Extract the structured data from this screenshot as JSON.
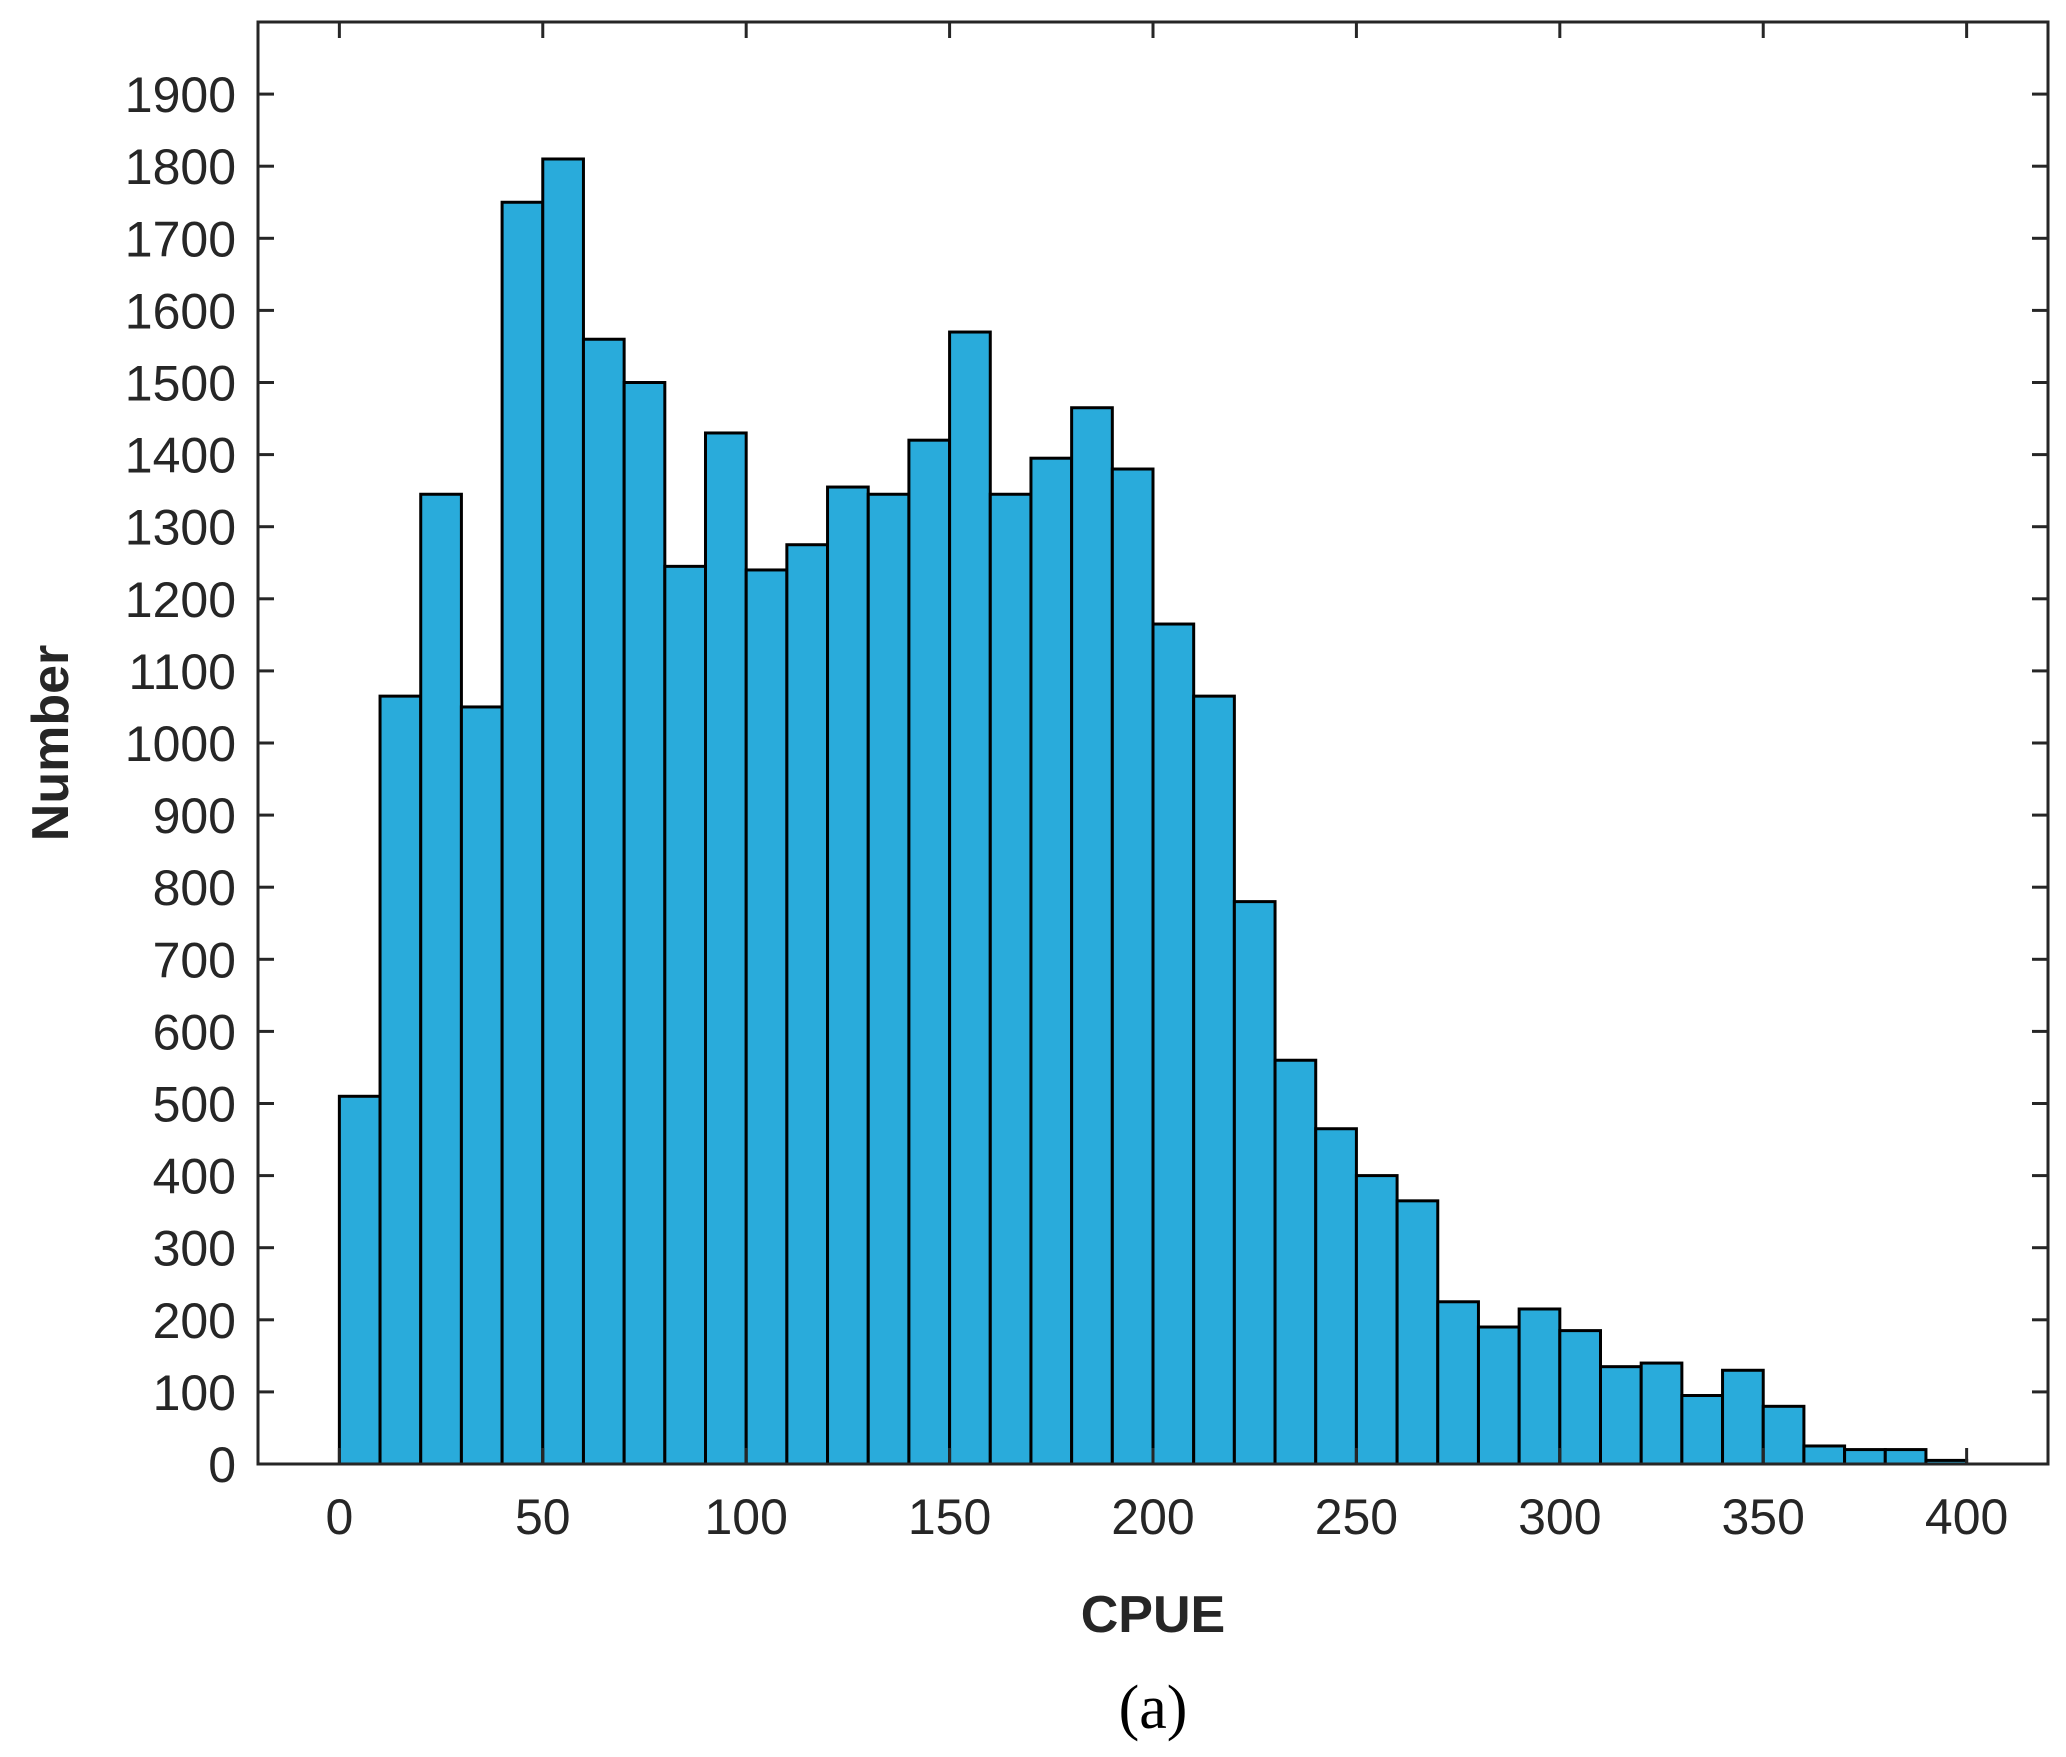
{
  "chart_data": {
    "type": "bar",
    "subtype": "histogram",
    "xlabel": "CPUE",
    "ylabel": "Number",
    "xlim": [
      -20,
      420
    ],
    "ylim": [
      0,
      2000
    ],
    "xticks": [
      0,
      50,
      100,
      150,
      200,
      250,
      300,
      350,
      400
    ],
    "yticks": [
      0,
      100,
      200,
      300,
      400,
      500,
      600,
      700,
      800,
      900,
      1000,
      1100,
      1200,
      1300,
      1400,
      1500,
      1600,
      1700,
      1800,
      1900
    ],
    "bin_width": 10,
    "bin_edges_start": [
      0,
      10,
      20,
      30,
      40,
      50,
      60,
      70,
      80,
      90,
      100,
      110,
      120,
      130,
      140,
      150,
      160,
      170,
      180,
      190,
      200,
      210,
      220,
      230,
      240,
      250,
      260,
      270,
      280,
      290,
      300,
      310,
      320,
      330,
      340,
      350,
      360,
      370,
      380,
      390
    ],
    "values": [
      510,
      1065,
      1345,
      1050,
      1750,
      1810,
      1560,
      1500,
      1245,
      1430,
      1240,
      1275,
      1355,
      1345,
      1420,
      1570,
      1345,
      1395,
      1465,
      1380,
      1165,
      1065,
      780,
      560,
      465,
      400,
      365,
      225,
      190,
      215,
      185,
      135,
      140,
      95,
      130,
      80,
      25,
      20,
      20,
      5
    ],
    "grid": false,
    "legend": "none",
    "bar_color": "#29ABDB",
    "bar_edge_color": "#000000"
  },
  "caption": "(a)"
}
